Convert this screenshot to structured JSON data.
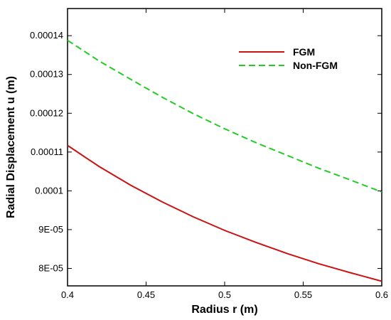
{
  "chart_data": {
    "type": "line",
    "title": "",
    "xlabel": "Radius r (m)",
    "ylabel": "Radial Displacement u (m)",
    "xlim": [
      0.4,
      0.6
    ],
    "ylim": [
      7.55e-05,
      0.000147
    ],
    "x_ticks": [
      0.4,
      0.45,
      0.5,
      0.55,
      0.6
    ],
    "x_tick_labels": [
      "0.4",
      "0.45",
      "0.5",
      "0.55",
      "0.6"
    ],
    "y_ticks": [
      8e-05,
      9e-05,
      0.0001,
      0.00011,
      0.00012,
      0.00013,
      0.00014
    ],
    "y_tick_labels": [
      "8E-05",
      "9E-05",
      "0.0001",
      "0.00011",
      "0.00012",
      "0.00013",
      "0.00014"
    ],
    "grid": false,
    "legend_position": "top-right",
    "series": [
      {
        "name": "FGM",
        "color": "#cc1111",
        "style": "solid",
        "x": [
          0.4,
          0.42,
          0.44,
          0.46,
          0.48,
          0.5,
          0.52,
          0.54,
          0.56,
          0.58,
          0.6
        ],
        "y": [
          0.0001117,
          0.0001063,
          0.0001015,
          9.72e-05,
          9.33e-05,
          8.98e-05,
          8.67e-05,
          8.38e-05,
          8.12e-05,
          7.89e-05,
          7.67e-05
        ]
      },
      {
        "name": "Non-FGM",
        "color": "#22cc22",
        "style": "dashed",
        "x": [
          0.4,
          0.42,
          0.44,
          0.46,
          0.48,
          0.5,
          0.52,
          0.54,
          0.56,
          0.58,
          0.6
        ],
        "y": [
          0.0001388,
          0.0001335,
          0.0001288,
          0.0001242,
          0.0001199,
          0.000116,
          0.0001124,
          0.0001091,
          0.0001058,
          0.0001028,
          9.97e-05
        ]
      }
    ]
  }
}
